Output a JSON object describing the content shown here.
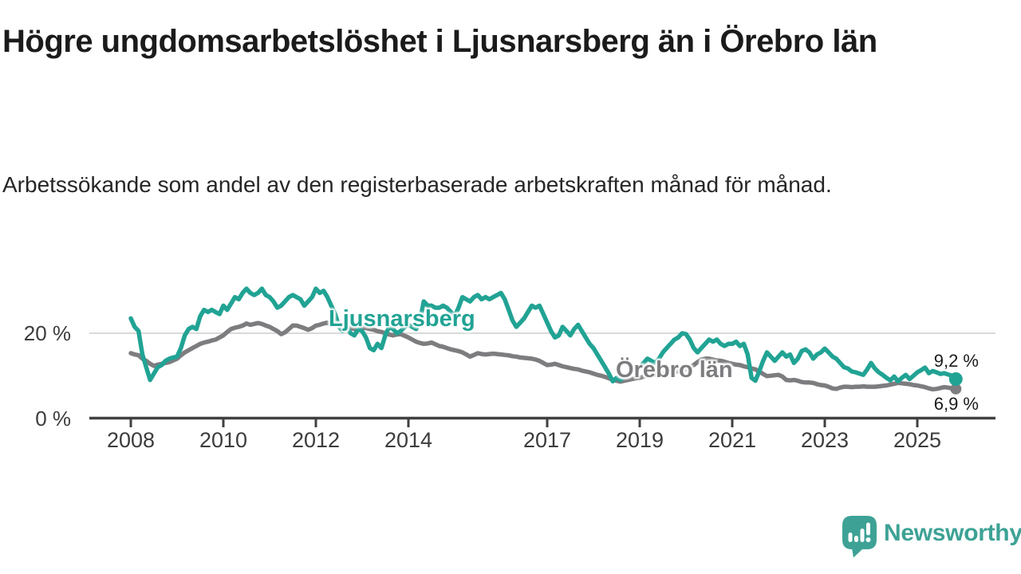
{
  "page": {
    "title": "Högre ungdomsarbetslöshet i Ljusnarsberg än i Örebro län",
    "subtitle": "Arbetssökande som andel av den registerbaserade arbetskraften månad för månad."
  },
  "branding": {
    "logo_text": "Newsworthy",
    "logo_color": "#3da295",
    "logo_icon": "speech-bubble-bar-chart-icon"
  },
  "chart_data": {
    "type": "line",
    "title": "Högre ungdomsarbetslöshet i Ljusnarsberg än i Örebro län",
    "xlabel": "",
    "ylabel": "",
    "unit": "%",
    "grid": "horizontal gridline at 20 % only",
    "legend_position": "inline labels on lines",
    "xlim_years": [
      2007.1,
      2026.7
    ],
    "ylim": [
      0,
      33
    ],
    "x_ticks": [
      2008,
      2010,
      2012,
      2014,
      2017,
      2019,
      2021,
      2023,
      2025
    ],
    "y_ticks": [
      {
        "value": 20,
        "label": "20 %"
      },
      {
        "value": 0,
        "label": "0 %"
      }
    ],
    "axis_color": "#414141",
    "gridline_color": "#d9d9d9",
    "x_start_year": 2008,
    "points_per_year": 12,
    "series": [
      {
        "name": "Ljusnarsberg",
        "color": "#21a394",
        "end_value": 9.2,
        "end_label": "9,2 %",
        "values": [
          23.5,
          21.5,
          20.5,
          15.0,
          12.0,
          9.0,
          10.5,
          12.0,
          12.5,
          13.5,
          14.0,
          14.3,
          14.5,
          16.5,
          19.5,
          21.0,
          21.5,
          21.0,
          24.0,
          25.5,
          25.0,
          25.5,
          25.0,
          24.5,
          26.5,
          25.5,
          27.0,
          28.5,
          28.0,
          29.5,
          30.5,
          29.5,
          29.0,
          29.5,
          30.5,
          29.0,
          28.5,
          27.5,
          26.0,
          26.5,
          27.5,
          28.5,
          29.0,
          28.5,
          28.0,
          26.5,
          27.5,
          28.5,
          30.5,
          29.5,
          30.0,
          28.5,
          26.5,
          24.5,
          21.5,
          20.5,
          21.5,
          20.0,
          19.5,
          21.0,
          20.5,
          19.0,
          16.5,
          16.0,
          17.5,
          16.5,
          19.5,
          21.5,
          21.0,
          20.0,
          20.5,
          21.5,
          22.0,
          21.5,
          21.0,
          23.0,
          27.5,
          26.5,
          26.5,
          26.0,
          26.0,
          26.5,
          26.0,
          25.0,
          24.0,
          26.0,
          28.5,
          28.0,
          27.5,
          28.5,
          29.0,
          28.0,
          28.5,
          28.0,
          28.5,
          29.0,
          29.5,
          28.0,
          25.5,
          23.0,
          21.5,
          22.5,
          23.5,
          25.0,
          26.5,
          26.0,
          26.5,
          24.5,
          22.5,
          20.5,
          19.0,
          19.5,
          21.5,
          20.5,
          19.5,
          21.0,
          22.0,
          20.5,
          19.0,
          17.5,
          16.5,
          15.0,
          13.5,
          12.0,
          10.5,
          8.7,
          9.5,
          9.0,
          10.0,
          10.5,
          11.0,
          11.5,
          12.0,
          13.0,
          14.0,
          13.5,
          13.0,
          14.0,
          15.5,
          16.5,
          17.5,
          18.5,
          19.0,
          20.0,
          19.8,
          18.5,
          16.5,
          15.5,
          16.5,
          17.5,
          18.5,
          18.0,
          18.5,
          17.5,
          17.0,
          17.5,
          17.5,
          18.0,
          17.0,
          17.5,
          15.0,
          9.5,
          8.8,
          11.0,
          13.5,
          15.5,
          14.5,
          13.5,
          14.5,
          15.5,
          14.5,
          15.0,
          13.0,
          14.0,
          15.8,
          16.2,
          15.5,
          14.0,
          15.0,
          15.5,
          16.4,
          15.5,
          14.5,
          14.0,
          13.0,
          12.0,
          11.7,
          11.0,
          10.8,
          10.5,
          10.2,
          11.5,
          13.0,
          11.7,
          10.8,
          10.2,
          9.5,
          8.9,
          9.8,
          8.7,
          9.5,
          10.2,
          9.2,
          10.0,
          10.8,
          11.3,
          11.9,
          10.6,
          11.1,
          10.8,
          10.4,
          10.6,
          10.3,
          10.0,
          9.2
        ]
      },
      {
        "name": "Örebro län",
        "color": "#7d7d80",
        "end_value": 6.9,
        "end_label": "6,9 %",
        "values": [
          15.3,
          15.0,
          14.8,
          14.0,
          13.5,
          12.8,
          12.3,
          12.6,
          12.8,
          13.0,
          13.2,
          13.6,
          14.0,
          14.8,
          15.5,
          16.0,
          16.5,
          17.0,
          17.5,
          17.8,
          18.0,
          18.3,
          18.5,
          19.0,
          19.5,
          20.3,
          21.0,
          21.3,
          21.5,
          21.8,
          22.3,
          22.0,
          22.2,
          22.4,
          22.2,
          21.8,
          21.5,
          21.0,
          20.5,
          19.8,
          20.2,
          21.0,
          21.8,
          21.8,
          21.5,
          21.2,
          20.8,
          21.2,
          21.8,
          22.0,
          22.3,
          22.5,
          22.2,
          22.8,
          22.3,
          22.0,
          21.6,
          21.2,
          21.0,
          21.3,
          21.5,
          21.2,
          21.0,
          20.8,
          20.5,
          20.3,
          20.0,
          19.7,
          19.5,
          19.7,
          19.8,
          19.4,
          19.0,
          18.5,
          18.0,
          17.7,
          17.5,
          17.6,
          17.8,
          17.4,
          17.0,
          16.8,
          16.5,
          16.2,
          16.0,
          15.8,
          15.5,
          15.0,
          14.5,
          14.9,
          15.3,
          15.1,
          15.0,
          15.1,
          15.2,
          15.1,
          15.0,
          14.9,
          14.8,
          14.6,
          14.5,
          14.3,
          14.2,
          14.1,
          14.0,
          13.8,
          13.5,
          13.0,
          12.5,
          12.6,
          12.8,
          12.5,
          12.2,
          12.0,
          11.8,
          11.6,
          11.5,
          11.2,
          11.0,
          10.8,
          10.5,
          10.2,
          10.0,
          9.7,
          9.4,
          9.0,
          8.8,
          8.6,
          8.8,
          9.0,
          9.2,
          9.4,
          9.5,
          9.8,
          10.0,
          10.1,
          10.2,
          10.4,
          10.5,
          10.6,
          10.8,
          10.9,
          11.0,
          11.2,
          11.5,
          12.0,
          12.5,
          13.2,
          13.8,
          14.0,
          14.0,
          13.8,
          13.6,
          13.5,
          13.3,
          13.0,
          12.8,
          12.6,
          12.5,
          12.2,
          12.0,
          11.7,
          11.5,
          11.0,
          10.4,
          9.9,
          10.0,
          10.1,
          10.2,
          9.8,
          9.0,
          8.9,
          9.0,
          8.8,
          8.5,
          8.4,
          8.4,
          8.3,
          8.0,
          7.8,
          7.7,
          7.4,
          7.0,
          6.9,
          7.2,
          7.4,
          7.4,
          7.3,
          7.4,
          7.4,
          7.5,
          7.4,
          7.4,
          7.4,
          7.5,
          7.6,
          7.7,
          7.9,
          8.1,
          8.3,
          8.2,
          8.1,
          8.0,
          7.8,
          7.7,
          7.5,
          7.3,
          7.0,
          6.8,
          6.9,
          7.1,
          7.3,
          7.2,
          7.0,
          6.9
        ]
      }
    ]
  }
}
